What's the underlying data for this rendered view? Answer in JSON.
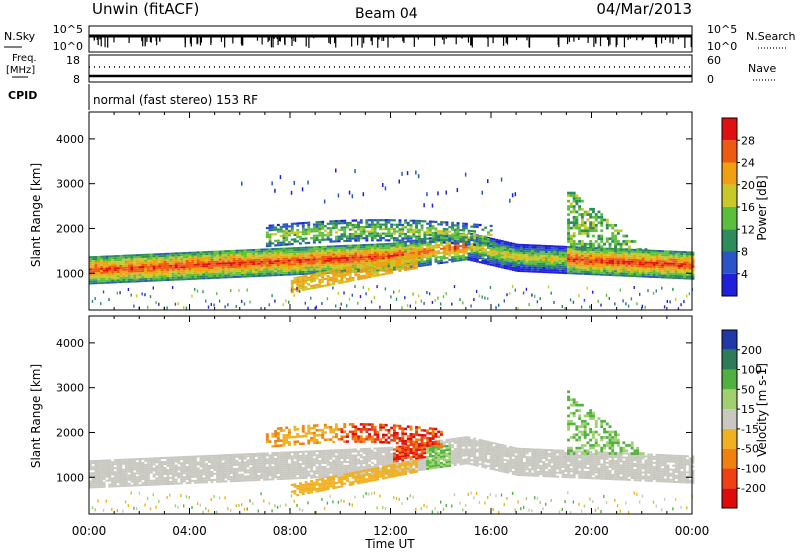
{
  "header": {
    "station": "Unwin (fitACF)",
    "beam": "Beam 04",
    "date": "04/Mar/2013"
  },
  "status_panel": {
    "nsky_label": "N.Sky",
    "nsky_ticks": [
      "10^5",
      "10^0"
    ],
    "nsearch_label": "N.Search",
    "freq_label_1": "Freq.",
    "freq_label_2": "[MHz]",
    "freq_ticks": [
      "18",
      "8"
    ],
    "nave_ticks": [
      "60",
      "0"
    ],
    "nave_label": "Nave",
    "cpid_label": "CPID",
    "cpid_text": "normal (fast stereo) 153 RF"
  },
  "chart_data": [
    {
      "type": "heatmap",
      "name": "power",
      "xlabel": "Time UT",
      "ylabel": "Slant Range [km]",
      "x_range_hours": [
        0,
        24
      ],
      "ylim": [
        180,
        4600
      ],
      "y_ticks": [
        1000,
        2000,
        3000,
        4000
      ],
      "colorbar_label": "Power [dB]",
      "colorbar_ticks": [
        "28",
        "24",
        "20",
        "16",
        "12",
        "8",
        "4"
      ],
      "colors": [
        "#1f1fdc",
        "#2a55c8",
        "#2c8c5a",
        "#5cbf3c",
        "#c8c828",
        "#f0a010",
        "#ee5a10",
        "#e01010"
      ],
      "regions": [
        {
          "description": "main band",
          "t": [
            0,
            12
          ],
          "range": [
            900,
            1400
          ],
          "level_db": 24
        },
        {
          "description": "upper band",
          "t": [
            7,
            16
          ],
          "range": [
            1600,
            2400
          ],
          "level_db": 14
        },
        {
          "description": "lower branch",
          "t": [
            8,
            13
          ],
          "range": [
            550,
            1200
          ],
          "level_db": 20
        },
        {
          "description": "post-midnight band",
          "t": [
            16,
            24
          ],
          "range": [
            1000,
            1600
          ],
          "level_db": 18
        },
        {
          "description": "plume",
          "t": [
            19,
            22
          ],
          "range": [
            1500,
            2900
          ],
          "level_db": 14
        }
      ]
    },
    {
      "type": "heatmap",
      "name": "velocity",
      "xlabel": "Time UT",
      "ylabel": "Slant Range [km]",
      "x_range_hours": [
        0,
        24
      ],
      "x_ticks": [
        "00:00",
        "04:00",
        "08:00",
        "12:00",
        "16:00",
        "20:00",
        "00:00"
      ],
      "ylim": [
        180,
        4600
      ],
      "y_ticks": [
        1000,
        2000,
        3000,
        4000
      ],
      "colorbar_label": "Velocity [m s-1]",
      "colorbar_ticks": [
        "200",
        "100",
        "50",
        "15",
        "-15",
        "-50",
        "-100",
        "-200"
      ],
      "colors": [
        "#2038a8",
        "#2c7c5a",
        "#50b040",
        "#a0d070",
        "#c8c8c0",
        "#f0b020",
        "#f08010",
        "#ee4010",
        "#e00a0a"
      ],
      "ground_scatter_color": "#c8c8c0"
    }
  ]
}
